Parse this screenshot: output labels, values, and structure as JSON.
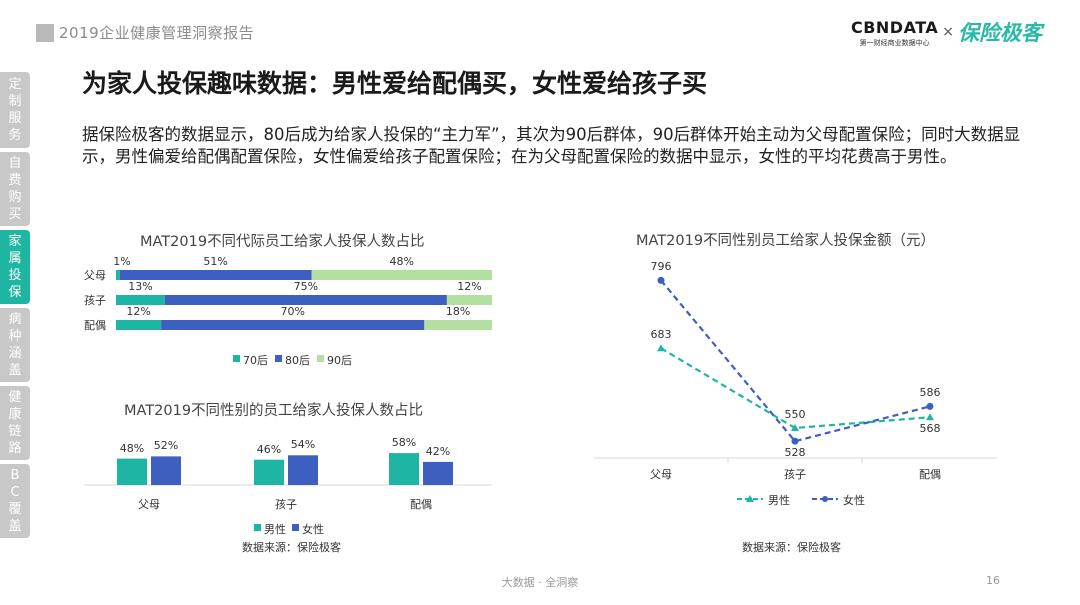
{
  "header": {
    "report_title": "2019企业健康管理洞察报告"
  },
  "logo": {
    "cbn_main": "CBNDATA",
    "cbn_sub": "第一财经商业数据中心",
    "separator": "×",
    "partner": "保险极客"
  },
  "sidebar": {
    "tabs": [
      {
        "label": "定制服务",
        "active": false
      },
      {
        "label": "自费购买",
        "active": false
      },
      {
        "label": "家属投保",
        "active": true
      },
      {
        "label": "病种涵盖",
        "active": false
      },
      {
        "label": "健康链路",
        "active": false
      },
      {
        "label": "BC覆盖",
        "active": false
      }
    ]
  },
  "page": {
    "title": "为家人投保趣味数据：男性爱给配偶买，女性爱给孩子买",
    "description": "据保险极客的数据显示，80后成为给家人投保的“主力军”，其次为90后群体，90后群体开始主动为父母配置保险；同时大数据显示，男性偏爱给配偶配置保险，女性偏爱给孩子配置保险；在为父母配置保险的数据中显示，女性的平均花费高于男性。",
    "footer": "大数据 · 全洞察",
    "page_number": "16"
  },
  "chart_data": [
    {
      "type": "bar",
      "orientation": "horizontal-stacked",
      "title": "MAT2019不同代际员工给家人投保人数占比",
      "categories": [
        "父母",
        "孩子",
        "配偶"
      ],
      "series": [
        {
          "name": "70后",
          "color": "#1fb5a3",
          "values": [
            1,
            13,
            12
          ],
          "labels": [
            "1%",
            "13%",
            "12%"
          ]
        },
        {
          "name": "80后",
          "color": "#3d5fc0",
          "values": [
            51,
            75,
            70
          ],
          "labels": [
            "51%",
            "75%",
            "70%"
          ]
        },
        {
          "name": "90后",
          "color": "#b3e0a0",
          "values": [
            48,
            12,
            18
          ],
          "labels": [
            "48%",
            "12%",
            "18%"
          ]
        }
      ],
      "legend": "bottom"
    },
    {
      "type": "bar",
      "orientation": "vertical-grouped",
      "title": "MAT2019不同性别的员工给家人投保人数占比",
      "categories": [
        "父母",
        "孩子",
        "配偶"
      ],
      "series": [
        {
          "name": "男性",
          "color": "#1fb5a3",
          "values": [
            48,
            46,
            58
          ],
          "labels": [
            "48%",
            "46%",
            "58%"
          ]
        },
        {
          "name": "女性",
          "color": "#3d5fc0",
          "values": [
            52,
            54,
            42
          ],
          "labels": [
            "52%",
            "54%",
            "42%"
          ]
        }
      ],
      "legend": "bottom",
      "source": "数据来源：保险极客"
    },
    {
      "type": "line",
      "title": "MAT2019不同性别员工给家人投保金额（元）",
      "categories": [
        "父母",
        "孩子",
        "配偶"
      ],
      "series": [
        {
          "name": "男性",
          "color": "#1fb5a3",
          "marker": "triangle",
          "dash": true,
          "values": [
            683,
            550,
            568
          ]
        },
        {
          "name": "女性",
          "color": "#3d5fc0",
          "marker": "circle",
          "dash": true,
          "values": [
            796,
            528,
            586
          ]
        }
      ],
      "legend": "bottom",
      "source": "数据来源：保险极客"
    }
  ]
}
